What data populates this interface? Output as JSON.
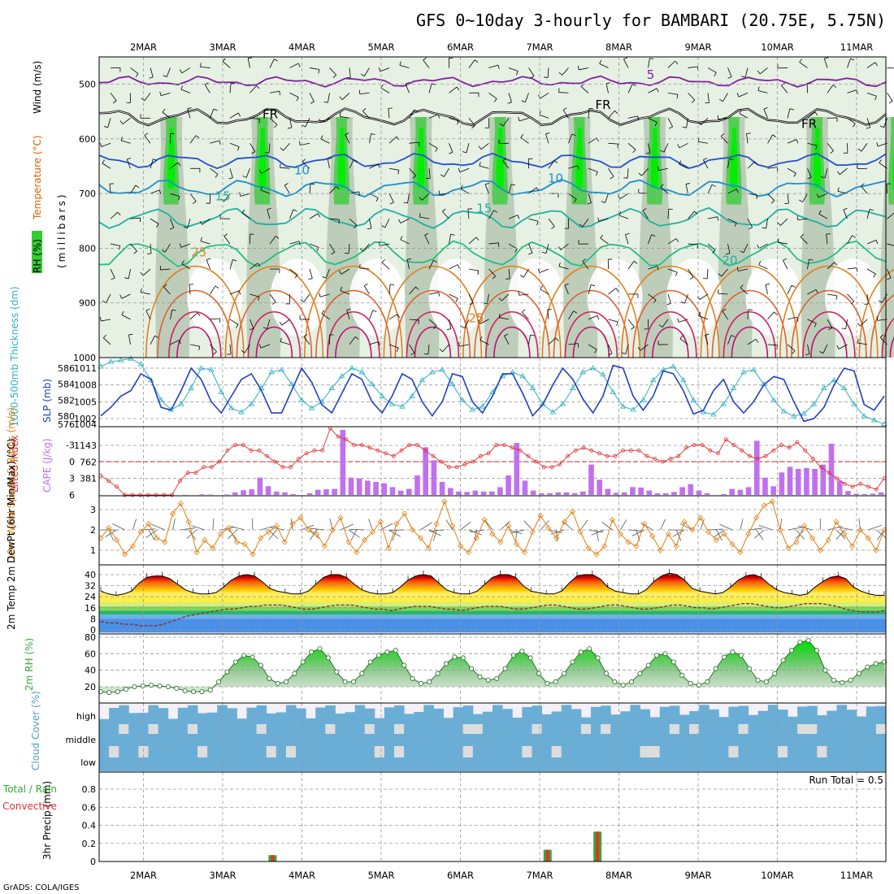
{
  "title": "GFS 0~10day 3-hourly for BAMBARI (20.75E, 5.75N)",
  "footer": "GrADS: COLA/IGES",
  "dates": [
    "2MAR",
    "3MAR",
    "4MAR",
    "5MAR",
    "6MAR",
    "7MAR",
    "8MAR",
    "9MAR",
    "10MAR",
    "11MAR"
  ],
  "colors": {
    "grid": "#999999",
    "rh": "#33cc33",
    "temp": "#e06000",
    "slp": "#2040c0",
    "thick": "#30b0c0",
    "cape": "#c070f0",
    "li": "#e03030",
    "wind": "#e08010",
    "cloud": "#6aaed6",
    "rain": "#e03030",
    "total": "#33aa33"
  },
  "chart_data": [
    {
      "type": "heatmap",
      "panel": "upper-air",
      "ylabel_parts": [
        "RH (%)",
        "Temperature (°C)",
        "Wind (m/s)"
      ],
      "yunits": "(millibars)",
      "ylim": [
        1000,
        450
      ],
      "yticks": [
        500,
        600,
        700,
        800,
        900,
        1000
      ],
      "contour_labels": [
        {
          "text": "5",
          "day": 6.4,
          "p": 490,
          "color": "#8020a0"
        },
        {
          "text": "FR",
          "day": 1.6,
          "p": 562,
          "color": "#000000"
        },
        {
          "text": "FR",
          "day": 5.8,
          "p": 545,
          "color": "#000000"
        },
        {
          "text": "FR",
          "day": 8.4,
          "p": 580,
          "color": "#000000"
        },
        {
          "text": "10",
          "day": 2.0,
          "p": 665,
          "color": "#1890d0"
        },
        {
          "text": "10",
          "day": 5.2,
          "p": 680,
          "color": "#1890d0"
        },
        {
          "text": "15",
          "day": 1.0,
          "p": 712,
          "color": "#20b0a0"
        },
        {
          "text": "15",
          "day": 4.3,
          "p": 735,
          "color": "#20b0a0"
        },
        {
          "text": "25",
          "day": 0.7,
          "p": 815,
          "color": "#e08020"
        },
        {
          "text": "20",
          "day": 7.4,
          "p": 830,
          "color": "#20b0a0"
        },
        {
          "text": "25",
          "day": 4.2,
          "p": 935,
          "color": "#e08020"
        }
      ]
    },
    {
      "type": "line",
      "panel": "thickness-slp",
      "ylabel_left": "1000-500mb Thickness (dm)",
      "ylabel_right": "SLP (mb)",
      "yticks_left": [
        "586",
        "584",
        "582",
        "580"
      ],
      "yticks_right": [
        "1011",
        "1008",
        "1005",
        "1002"
      ],
      "extra_ticks": [
        "576",
        "1004"
      ],
      "series": [
        {
          "name": "SLP",
          "values": [
            1002.5,
            1004,
            1006,
            1007,
            1010,
            1009,
            1004,
            1003.5,
            1007,
            1011,
            1009,
            1005,
            1003,
            1006,
            1009,
            1010,
            1007,
            1003,
            1003,
            1007,
            1011,
            1008.5,
            1004.5,
            1003,
            1006.5,
            1010,
            1009,
            1005,
            1003,
            1006,
            1010,
            1009,
            1005,
            1002.5,
            1005,
            1010,
            1009.5,
            1005,
            1003,
            1006,
            1010,
            1010,
            1006.5,
            1002.5,
            1004.5,
            1008,
            1011,
            1009,
            1005.5,
            1003,
            1006,
            1011.5,
            1011,
            1006,
            1003.5,
            1006,
            1010.5,
            1010,
            1007,
            1002.8,
            1003.5,
            1007,
            1009,
            1005,
            1003,
            1005,
            1008,
            1009.5,
            1009,
            1005,
            1001.5,
            1002,
            1004,
            1008,
            1011,
            1010.5,
            1004.5,
            1003.5,
            1006
          ]
        },
        {
          "name": "Thickness",
          "values": [
            586.2,
            586.8,
            587,
            587.2,
            586.5,
            584.5,
            582,
            580.8,
            581.5,
            583.5,
            586,
            585.8,
            583,
            581,
            580.5,
            581.5,
            583.5,
            585.5,
            585.8,
            584,
            582,
            581,
            581.8,
            583.5,
            585,
            586,
            585.5,
            584,
            582.5,
            581.5,
            581.2,
            582.5,
            584.5,
            585.5,
            585.8,
            584,
            582,
            580.8,
            581.2,
            583,
            585,
            585.5,
            585,
            583.5,
            581.5,
            580.5,
            581.5,
            583.5,
            585.5,
            586,
            585.2,
            583,
            581.2,
            580.8,
            582,
            584.5,
            585.8,
            586.2,
            584.5,
            582,
            580.5,
            580.2,
            581.5,
            583.5,
            585.5,
            585.8,
            584,
            582,
            580.6,
            580,
            580.3,
            581.5,
            583.5,
            584.5,
            583.5,
            581.5,
            580,
            579.5,
            579
          ]
        }
      ]
    },
    {
      "type": "bar",
      "panel": "cape-li",
      "ylabel_left": "Lifted Index",
      "ylabel_right": "CAPE (J/kg)",
      "yticks_left": [
        "-3",
        "0",
        "3",
        "6"
      ],
      "yticks_right": [
        "1143",
        "762",
        "381"
      ],
      "series": [
        {
          "name": "CAPE",
          "values": [
            0,
            0,
            0,
            0,
            0,
            0,
            0,
            0,
            0,
            0,
            5,
            0,
            15,
            10,
            0,
            10,
            60,
            110,
            130,
            400,
            200,
            80,
            60,
            20,
            0,
            40,
            120,
            130,
            140,
            1500,
            400,
            380,
            330,
            300,
            270,
            180,
            100,
            140,
            450,
            1100,
            800,
            300,
            160,
            80,
            70,
            100,
            80,
            80,
            180,
            450,
            1200,
            330,
            100,
            40,
            40,
            60,
            60,
            40,
            80,
            700,
            350,
            140,
            50,
            60,
            180,
            170,
            100,
            40,
            40,
            70,
            180,
            250,
            100,
            40,
            0,
            20,
            140,
            120,
            180,
            1250,
            400,
            200,
            520,
            650,
            600,
            620,
            600,
            700,
            1180,
            330,
            90,
            30,
            20,
            30,
            60
          ]
        },
        {
          "name": "Lifted Index",
          "values": [
            2.5,
            3.5,
            4.5,
            6,
            6.5,
            6.5,
            6.5,
            6.5,
            6.5,
            6,
            3.5,
            2,
            2,
            1,
            1,
            0,
            -2,
            -3,
            -3,
            -2,
            -2,
            -1,
            0,
            1,
            1,
            -0.5,
            -1.5,
            -2,
            -2,
            -6,
            -4.5,
            -4,
            -3,
            -3,
            -2.5,
            -2,
            -1.5,
            -1,
            -2,
            -3,
            -3,
            -2,
            -1,
            0,
            1,
            1,
            0.5,
            0,
            -1,
            -1.5,
            -3,
            -3,
            -2.5,
            -2,
            -1,
            0,
            1,
            1,
            0.5,
            -1,
            -2,
            -2.5,
            -2,
            -1.5,
            -1,
            -1,
            -2,
            -2,
            -2,
            -1,
            -0.5,
            0,
            -0.5,
            -1,
            -2.5,
            -3,
            -3,
            -2,
            -1.5,
            -4,
            -3,
            -2,
            -1,
            -0.5,
            -1,
            -2,
            -3,
            -2.5,
            -3.5,
            -2,
            -0.5,
            1,
            2,
            3,
            4,
            4.5,
            4,
            4.5,
            5,
            3
          ]
        }
      ]
    },
    {
      "type": "line",
      "panel": "wind10m",
      "ylabel": "10m Wind Speed & Barbs (m/s)",
      "yticks": [
        "3",
        "2",
        "1"
      ],
      "ylim": [
        0.4,
        3.8
      ],
      "series": [
        {
          "name": "Speed",
          "values": [
            1.6,
            2.1,
            1.5,
            0.8,
            1.2,
            1.9,
            2.3,
            1.6,
            1.4,
            2.8,
            3.3,
            2.4,
            0.9,
            1.5,
            1.1,
            1.8,
            2.1,
            1.4,
            1.3,
            0.8,
            1.6,
            1.9,
            2.2,
            1.4,
            2.3,
            2.6,
            2.0,
            1.8,
            1.2,
            2.0,
            2.6,
            1.4,
            0.9,
            1.5,
            1.9,
            2.4,
            1.1,
            2.3,
            2.8,
            2.0,
            1.6,
            1.1,
            2.3,
            3.4,
            2.2,
            1.2,
            0.9,
            1.6,
            2.5,
            1.8,
            1.4,
            2.2,
            1.3,
            0.9,
            1.9,
            2.7,
            2.1,
            1.6,
            2.4,
            2.9,
            1.9,
            1.1,
            0.8,
            1.2,
            2.5,
            1.8,
            1.4,
            1.2,
            2.3,
            1.7,
            1.0,
            1.8,
            1.2,
            2.4,
            2.0,
            2.6,
            1.9,
            1.5,
            1.8,
            1.3,
            0.9,
            1.8,
            2.6,
            3.2,
            3.4,
            2.0,
            1.1,
            1.4,
            2.2,
            1.6,
            1.0,
            1.5,
            2.4,
            1.8,
            1.2,
            2.0,
            1.6,
            1.0,
            2.0
          ]
        }
      ]
    },
    {
      "type": "area",
      "panel": "temp2m",
      "ylabel": "2m Temp 2m DewPt (6hr Min/Max) (°C)",
      "yticks": [
        "40",
        "32",
        "24",
        "16",
        "8",
        "0"
      ],
      "ylim": [
        -2,
        44
      ],
      "series": [
        {
          "name": "Temp",
          "values": [
            28,
            26,
            25,
            26,
            28,
            34,
            38,
            39,
            39,
            37,
            33,
            29,
            27,
            26,
            26,
            27,
            31,
            36,
            39,
            40,
            39,
            35,
            30,
            28,
            27,
            26,
            26,
            28,
            33,
            38,
            40,
            40,
            38,
            33,
            29,
            27,
            26,
            26,
            27,
            31,
            36,
            39,
            40,
            39,
            34,
            29,
            27,
            26,
            26,
            28,
            33,
            38,
            40,
            40,
            38,
            32,
            28,
            27,
            26,
            26,
            28,
            34,
            39,
            40,
            40,
            37,
            31,
            28,
            27,
            26,
            26,
            29,
            35,
            39,
            41,
            40,
            36,
            30,
            28,
            27,
            26,
            27,
            31,
            36,
            39,
            40,
            38,
            33,
            29,
            27,
            26,
            25,
            26,
            31,
            35,
            38,
            39,
            37,
            31,
            28,
            26,
            25,
            25
          ]
        },
        {
          "name": "DewPt",
          "values": [
            6,
            5,
            5,
            4,
            4,
            3,
            3,
            3,
            4,
            6,
            8,
            10,
            11,
            12,
            13,
            14,
            15,
            15,
            16,
            17,
            17,
            18,
            18,
            18,
            17,
            16,
            15,
            15,
            16,
            17,
            18,
            18,
            18,
            17,
            16,
            15,
            15,
            14,
            15,
            16,
            17,
            17,
            17,
            16,
            15,
            15,
            14,
            15,
            16,
            17,
            17,
            17,
            16,
            15,
            15,
            16,
            17,
            18,
            18,
            17,
            16,
            15,
            15,
            16,
            17,
            18,
            18,
            17,
            16,
            15,
            15,
            16,
            17,
            18,
            18,
            17,
            16,
            16,
            15,
            16,
            17,
            18,
            19,
            19,
            18,
            17,
            16,
            16,
            17,
            18,
            19,
            19,
            19,
            18,
            17,
            15,
            14,
            13,
            13,
            13,
            14
          ]
        }
      ]
    },
    {
      "type": "area",
      "panel": "rh2m",
      "ylabel": "2m RH (%)",
      "yticks": [
        "80",
        "60",
        "40",
        "20"
      ],
      "ylim": [
        10,
        85
      ],
      "series": [
        {
          "name": "RH",
          "values": [
            14,
            13,
            14,
            17,
            20,
            21,
            22,
            21,
            20,
            18,
            15,
            14,
            14,
            16,
            26,
            38,
            50,
            58,
            56,
            46,
            30,
            24,
            26,
            36,
            50,
            62,
            66,
            55,
            38,
            26,
            26,
            36,
            50,
            58,
            62,
            64,
            46,
            30,
            24,
            26,
            36,
            48,
            56,
            55,
            42,
            32,
            28,
            30,
            42,
            58,
            63,
            55,
            36,
            24,
            26,
            36,
            50,
            62,
            66,
            55,
            36,
            26,
            22,
            26,
            36,
            46,
            58,
            60,
            50,
            34,
            24,
            22,
            26,
            42,
            56,
            62,
            58,
            42,
            28,
            26,
            36,
            52,
            64,
            74,
            76,
            64,
            40,
            28,
            25,
            28,
            36,
            44,
            48,
            50
          ]
        }
      ]
    },
    {
      "type": "bar",
      "panel": "cloud",
      "ylabel": "Cloud Cover (%)",
      "levels": [
        "high",
        "middle",
        "low"
      ]
    },
    {
      "type": "bar",
      "panel": "precip",
      "ylabel": "3hr Precip (mm)",
      "legend": [
        "Total / Rain",
        "Convective"
      ],
      "yticks": [
        "0.8",
        "0.6",
        "0.4",
        "0.2",
        "0"
      ],
      "ylim": [
        0,
        0.95
      ],
      "run_total_label": "Run Total = 0.5",
      "events": [
        {
          "day": 1.63,
          "total": 0.07,
          "conv": 0.07
        },
        {
          "day": 5.1,
          "total": 0.13,
          "conv": 0.13
        },
        {
          "day": 5.73,
          "total": 0.33,
          "conv": 0.33
        }
      ]
    }
  ]
}
